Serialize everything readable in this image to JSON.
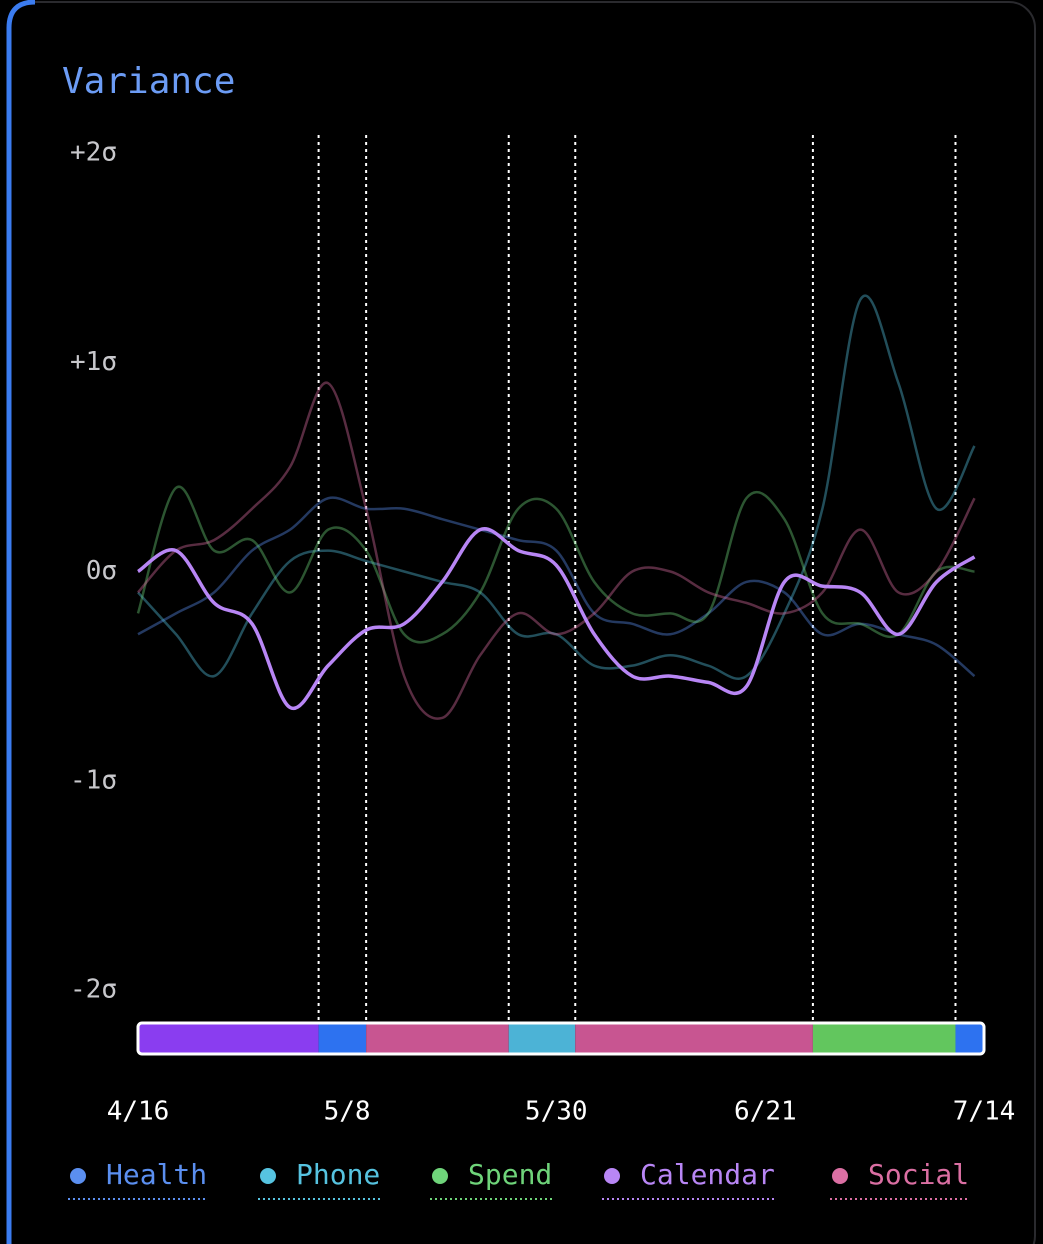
{
  "chart_data": {
    "type": "line",
    "title": "Variance",
    "x": [
      "4/16",
      "4/20",
      "4/24",
      "4/28",
      "5/2",
      "5/6",
      "5/10",
      "5/14",
      "5/18",
      "5/22",
      "5/26",
      "5/30",
      "6/3",
      "6/7",
      "6/11",
      "6/15",
      "6/19",
      "6/23",
      "6/27",
      "7/1",
      "7/5",
      "7/9",
      "7/13"
    ],
    "xlim": [
      "4/16",
      "7/14"
    ],
    "xticks": [
      "4/16",
      "5/8",
      "5/30",
      "6/21",
      "7/14"
    ],
    "ylim": [
      -2,
      2
    ],
    "yticks": [
      {
        "value": 2,
        "label": "+2σ"
      },
      {
        "value": 1,
        "label": "+1σ"
      },
      {
        "value": 0,
        "label": "0σ"
      },
      {
        "value": -1,
        "label": "-1σ"
      },
      {
        "value": -2,
        "label": "-2σ"
      }
    ],
    "series": [
      {
        "name": "Health",
        "color": "#5b8ff0",
        "values": [
          -0.3,
          -0.2,
          -0.1,
          0.1,
          0.2,
          0.35,
          0.3,
          0.3,
          0.25,
          0.2,
          0.15,
          0.1,
          -0.2,
          -0.25,
          -0.3,
          -0.2,
          -0.05,
          -0.1,
          -0.3,
          -0.25,
          -0.3,
          -0.35,
          -0.5
        ]
      },
      {
        "name": "Phone",
        "color": "#56c3e0",
        "values": [
          -0.1,
          -0.3,
          -0.5,
          -0.2,
          0.05,
          0.1,
          0.05,
          0.0,
          -0.05,
          -0.1,
          -0.3,
          -0.3,
          -0.45,
          -0.45,
          -0.4,
          -0.45,
          -0.5,
          -0.2,
          0.3,
          1.3,
          0.9,
          0.3,
          0.6
        ]
      },
      {
        "name": "Spend",
        "color": "#6fd47a",
        "values": [
          -0.2,
          0.4,
          0.1,
          0.15,
          -0.1,
          0.2,
          0.1,
          -0.3,
          -0.3,
          -0.1,
          0.3,
          0.3,
          -0.05,
          -0.2,
          -0.2,
          -0.2,
          0.35,
          0.25,
          -0.2,
          -0.25,
          -0.3,
          0.0,
          0.0
        ]
      },
      {
        "name": "Calendar",
        "color": "#b886f5",
        "emphasis": true,
        "values": [
          0.0,
          0.1,
          -0.15,
          -0.25,
          -0.65,
          -0.45,
          -0.28,
          -0.25,
          -0.05,
          0.2,
          0.1,
          0.03,
          -0.3,
          -0.5,
          -0.5,
          -0.53,
          -0.55,
          -0.05,
          -0.07,
          -0.1,
          -0.3,
          -0.05,
          0.07
        ]
      },
      {
        "name": "Social",
        "color": "#db6fa3",
        "values": [
          -0.1,
          0.1,
          0.15,
          0.3,
          0.5,
          0.9,
          0.3,
          -0.5,
          -0.7,
          -0.4,
          -0.2,
          -0.3,
          -0.2,
          0.0,
          0.0,
          -0.1,
          -0.15,
          -0.2,
          -0.1,
          0.2,
          -0.1,
          0.0,
          0.35
        ]
      }
    ],
    "segments": [
      {
        "start": "4/16",
        "end": "5/5",
        "color": "#8a3df0"
      },
      {
        "start": "5/5",
        "end": "5/10",
        "color": "#2d72f0"
      },
      {
        "start": "5/10",
        "end": "5/25",
        "color": "#c85591"
      },
      {
        "start": "5/25",
        "end": "6/1",
        "color": "#4cb3d6"
      },
      {
        "start": "6/1",
        "end": "6/26",
        "color": "#c85591"
      },
      {
        "start": "6/26",
        "end": "7/11",
        "color": "#62c65e"
      },
      {
        "start": "7/11",
        "end": "7/14",
        "color": "#2d72f0"
      }
    ]
  }
}
